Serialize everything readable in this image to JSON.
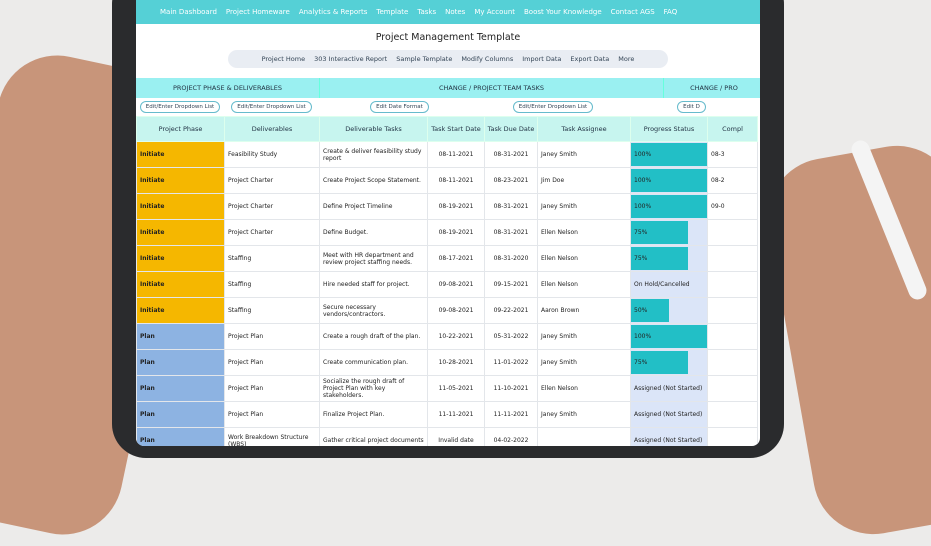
{
  "nav": [
    "Main Dashboard",
    "Project Homeware",
    "Analytics & Reports",
    "Template",
    "Tasks",
    "Notes",
    "My Account",
    "Boost Your Knowledge",
    "Contact AGS",
    "FAQ"
  ],
  "title": "Project Management Template",
  "toolbar": [
    "Project Home",
    "303 Interactive Report",
    "Sample Template",
    "Modify Columns",
    "Import Data",
    "Export Data",
    "More"
  ],
  "sections": [
    "PROJECT PHASE & DELIVERABLES",
    "CHANGE / PROJECT TEAM TASKS",
    "CHANGE / PRO"
  ],
  "buttons": [
    "Edit/Enter Dropdown List",
    "Edit/Enter Dropdown List",
    "Edit Date Format",
    "Edit/Enter Dropdown List",
    "Edit D"
  ],
  "columns": [
    "Project Phase",
    "Deliverables",
    "Deliverable Tasks",
    "Task Start Date",
    "Task Due Date",
    "Task Assignee",
    "Progress Status",
    "Compl"
  ],
  "rows": [
    [
      "Initiate",
      "Feasibility Study",
      "Create & deliver feasibility study report",
      "08-11-2021",
      "08-31-2021",
      "Janey Smith",
      {
        "value": 100,
        "label": "100%"
      },
      "08-3"
    ],
    [
      "Initiate",
      "Project Charter",
      "Create Project Scope Statement.",
      "08-11-2021",
      "08-23-2021",
      "Jim Doe",
      {
        "value": 100,
        "label": "100%"
      },
      "08-2"
    ],
    [
      "Initiate",
      "Project Charter",
      "Define Project Timeline",
      "08-19-2021",
      "08-31-2021",
      "Janey Smith",
      {
        "value": 100,
        "label": "100%"
      },
      "09-0"
    ],
    [
      "Initiate",
      "Project Charter",
      "Define Budget.",
      "08-19-2021",
      "08-31-2021",
      "Ellen Nelson",
      {
        "value": 75,
        "label": "75%"
      },
      ""
    ],
    [
      "Initiate",
      "Staffing",
      "Meet with HR department and review project staffing needs.",
      "08-17-2021",
      "08-31-2020",
      "Ellen Nelson",
      {
        "value": 75,
        "label": "75%"
      },
      ""
    ],
    [
      "Initiate",
      "Staffing",
      "Hire needed staff for project.",
      "09-08-2021",
      "09-15-2021",
      "Ellen Nelson",
      "On Hold/Cancelled",
      ""
    ],
    [
      "Initiate",
      "Staffing",
      "Secure necessary vendors/contractors.",
      "09-08-2021",
      "09-22-2021",
      "Aaron Brown",
      {
        "value": 50,
        "label": "50%"
      },
      ""
    ],
    [
      "Plan",
      "Project Plan",
      "Create a rough draft of the plan.",
      "10-22-2021",
      "05-31-2022",
      "Janey Smith",
      {
        "value": 100,
        "label": "100%"
      },
      ""
    ],
    [
      "Plan",
      "Project Plan",
      "Create communication plan.",
      "10-28-2021",
      "11-01-2022",
      "Janey Smith",
      {
        "value": 75,
        "label": "75%"
      },
      ""
    ],
    [
      "Plan",
      "Project Plan",
      "Socialize the rough draft of Project Plan with key stakeholders.",
      "11-05-2021",
      "11-10-2021",
      "Ellen Nelson",
      "Assigned (Not Started)",
      ""
    ],
    [
      "Plan",
      "Project Plan",
      "Finalize Project Plan.",
      "11-11-2021",
      "11-11-2021",
      "Janey Smith",
      "Assigned (Not Started)",
      ""
    ],
    [
      "Plan",
      "Work Breakdown Structure (WBS)",
      "Gather critical project documents",
      "Invalid date",
      "04-02-2022",
      "",
      "Assigned (Not Started)",
      ""
    ]
  ]
}
